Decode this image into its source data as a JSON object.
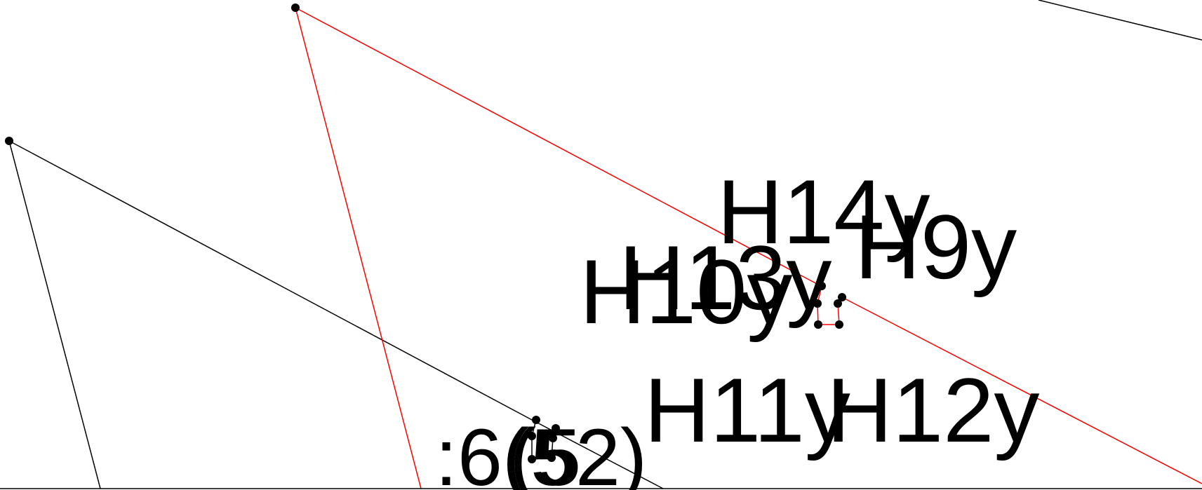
{
  "diagram": {
    "colors": {
      "background": "#ffffff",
      "black_stroke": "#000000",
      "red_stroke": "#ff0000",
      "point_fill": "#000000"
    },
    "labels": {
      "h14y": "H14y",
      "h9y": "H9y",
      "h13y": "H13y",
      "h10y": "H10y",
      "h11y": "H11y",
      "h12y": "H12y",
      "o6": ":6(",
      "o5": "(5",
      "o52": "52)"
    }
  }
}
